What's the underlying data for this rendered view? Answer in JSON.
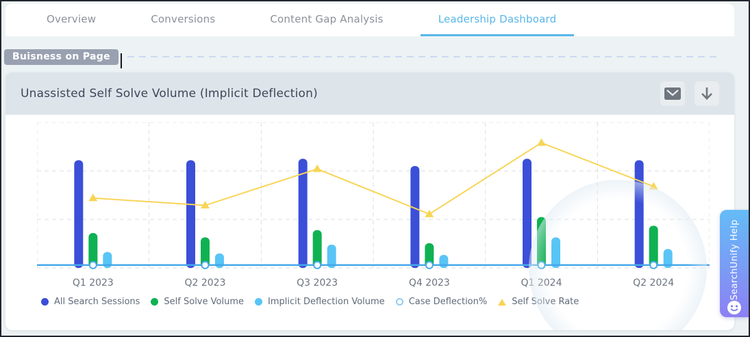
{
  "tabs": [
    {
      "label": "Overview",
      "active": false
    },
    {
      "label": "Conversions",
      "active": false
    },
    {
      "label": "Content Gap Analysis",
      "active": false
    },
    {
      "label": "Leadership Dashboard",
      "active": true
    }
  ],
  "badge": {
    "label": "Buisness on Page"
  },
  "panel": {
    "title": "Unassisted Self Solve Volume (Implicit Deflection)"
  },
  "help_button": {
    "label": "SearchUnify Help"
  },
  "colors": {
    "active_tab": "#58b7e9",
    "badge_bg": "#99a1b1",
    "card_header_bg": "#dee5ea",
    "page_bg": "#edf3f4",
    "all_search_sessions": "#3b4fd8",
    "self_solve_volume": "#0fb252",
    "implicit_deflection_volume": "#58c5f6",
    "case_deflection": "#46a8ea",
    "self_solve_rate": "#f8d557"
  },
  "chart_data": {
    "type": "bar",
    "title": "Unassisted Self Solve Volume (Implicit Deflection)",
    "categories": [
      "Q1 2023",
      "Q2 2023",
      "Q3 2023",
      "Q4 2023",
      "Q1 2024",
      "Q2 2024"
    ],
    "series": [
      {
        "name": "All Search Sessions",
        "type": "bar",
        "color": "#3b4fd8",
        "values": [
          74,
          74,
          75,
          70,
          75,
          74
        ]
      },
      {
        "name": "Self Solve Volume",
        "type": "bar",
        "color": "#0fb252",
        "values": [
          24,
          21,
          26,
          17,
          35,
          29
        ]
      },
      {
        "name": "Implicit Deflection Volume",
        "type": "bar",
        "color": "#58c5f6",
        "values": [
          11,
          10,
          16,
          9,
          21,
          13
        ]
      },
      {
        "name": "Case Deflection%",
        "type": "line",
        "marker": "circle-hollow",
        "span_full": true,
        "width": 2.5,
        "color": "#46a8ea",
        "values": [
          2,
          2,
          2,
          2,
          2,
          2
        ]
      },
      {
        "name": "Self Solve Rate",
        "type": "line",
        "marker": "triangle",
        "width": 2,
        "color": "#f8d557",
        "values": [
          48,
          43,
          68,
          37,
          86,
          56
        ]
      }
    ],
    "xlabel": "",
    "ylabel": "",
    "ylim": [
      0,
      100
    ],
    "grid": true,
    "legend_position": "bottom-left"
  }
}
